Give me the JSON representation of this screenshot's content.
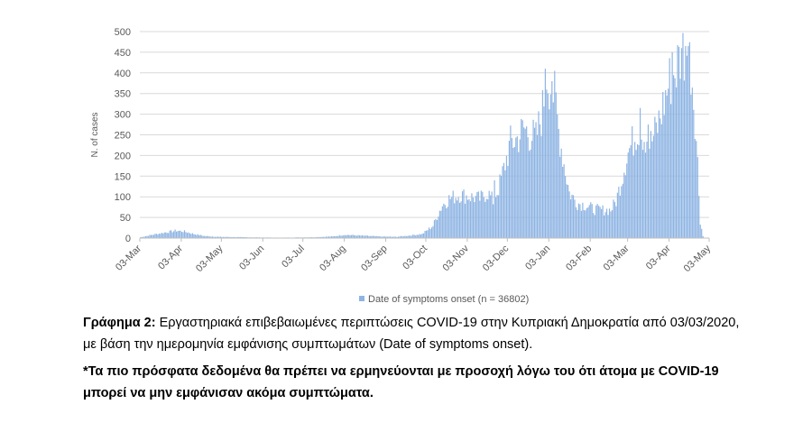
{
  "chart_data": {
    "type": "bar",
    "title": "",
    "ylabel": "N. of cases",
    "xlabel": "",
    "ylim": [
      0,
      500
    ],
    "yticks": [
      0,
      50,
      100,
      150,
      200,
      250,
      300,
      350,
      400,
      450,
      500
    ],
    "x_start": "2020-03-03",
    "x_end": "2021-05-03",
    "xtick_labels": [
      "03-Mar",
      "03-Apr",
      "03-May",
      "03-Jun",
      "03-Jul",
      "03-Aug",
      "03-Sep",
      "03-Oct",
      "03-Nov",
      "03-Dec",
      "03-Jan",
      "03-Feb",
      "03-Mar",
      "03-Apr",
      "03-May"
    ],
    "xtick_dates": [
      "2020-03-03",
      "2020-04-03",
      "2020-05-03",
      "2020-06-03",
      "2020-07-03",
      "2020-08-03",
      "2020-09-03",
      "2020-10-03",
      "2020-11-03",
      "2020-12-03",
      "2021-01-03",
      "2021-02-03",
      "2021-03-03",
      "2021-04-03",
      "2021-05-03"
    ],
    "grid": true,
    "legend_position": "bottom",
    "bar_color": "#8eb4e3",
    "series": [
      {
        "name": "Date of symptoms onset (n = 36802)",
        "anchors": [
          [
            "2020-03-03",
            2
          ],
          [
            "2020-03-12",
            8
          ],
          [
            "2020-03-22",
            14
          ],
          [
            "2020-03-30",
            18
          ],
          [
            "2020-04-05",
            16
          ],
          [
            "2020-04-12",
            10
          ],
          [
            "2020-04-20",
            5
          ],
          [
            "2020-05-01",
            3
          ],
          [
            "2020-05-20",
            2
          ],
          [
            "2020-06-15",
            1
          ],
          [
            "2020-07-10",
            2
          ],
          [
            "2020-07-25",
            4
          ],
          [
            "2020-08-03",
            8
          ],
          [
            "2020-08-15",
            6
          ],
          [
            "2020-08-28",
            4
          ],
          [
            "2020-09-10",
            3
          ],
          [
            "2020-09-20",
            6
          ],
          [
            "2020-09-30",
            10
          ],
          [
            "2020-10-08",
            30
          ],
          [
            "2020-10-12",
            60
          ],
          [
            "2020-10-15",
            80
          ],
          [
            "2020-10-20",
            95
          ],
          [
            "2020-10-28",
            105
          ],
          [
            "2020-11-05",
            100
          ],
          [
            "2020-11-12",
            95
          ],
          [
            "2020-11-18",
            110
          ],
          [
            "2020-11-22",
            90
          ],
          [
            "2020-11-26",
            120
          ],
          [
            "2020-12-01",
            180
          ],
          [
            "2020-12-05",
            230
          ],
          [
            "2020-12-10",
            240
          ],
          [
            "2020-12-15",
            265
          ],
          [
            "2020-12-20",
            250
          ],
          [
            "2020-12-24",
            240
          ],
          [
            "2020-12-29",
            310
          ],
          [
            "2021-01-01",
            400
          ],
          [
            "2021-01-04",
            370
          ],
          [
            "2021-01-07",
            340
          ],
          [
            "2021-01-10",
            260
          ],
          [
            "2021-01-14",
            180
          ],
          [
            "2021-01-18",
            110
          ],
          [
            "2021-01-24",
            85
          ],
          [
            "2021-01-30",
            80
          ],
          [
            "2021-02-05",
            70
          ],
          [
            "2021-02-12",
            68
          ],
          [
            "2021-02-18",
            68
          ],
          [
            "2021-02-22",
            90
          ],
          [
            "2021-02-26",
            140
          ],
          [
            "2021-03-02",
            200
          ],
          [
            "2021-03-06",
            230
          ],
          [
            "2021-03-10",
            265
          ],
          [
            "2021-03-15",
            250
          ],
          [
            "2021-03-20",
            230
          ],
          [
            "2021-03-25",
            270
          ],
          [
            "2021-03-30",
            330
          ],
          [
            "2021-04-03",
            380
          ],
          [
            "2021-04-07",
            400
          ],
          [
            "2021-04-10",
            430
          ],
          [
            "2021-04-13",
            455
          ],
          [
            "2021-04-16",
            450
          ],
          [
            "2021-04-19",
            420
          ],
          [
            "2021-04-22",
            300
          ],
          [
            "2021-04-24",
            180
          ],
          [
            "2021-04-26",
            40
          ],
          [
            "2021-04-28",
            5
          ],
          [
            "2021-04-29",
            0
          ]
        ],
        "spikes": [
          [
            "2020-12-31",
            410
          ],
          [
            "2021-01-05",
            380
          ],
          [
            "2021-03-12",
            315
          ],
          [
            "2021-04-05",
            450
          ],
          [
            "2021-04-12",
            460
          ],
          [
            "2021-04-15",
            465
          ],
          [
            "2021-04-17",
            465
          ],
          [
            "2020-11-23",
            140
          ],
          [
            "2021-03-18",
            275
          ]
        ]
      }
    ]
  },
  "caption": {
    "label": "Γράφημα 2:",
    "text": " Εργαστηριακά επιβεβαιωμένες περιπτώσεις COVID-19 στην Κυπριακή Δημοκρατία από 03/03/2020, με βάση την ημερομηνία εμφάνισης συμπτωμάτων (Date of symptoms onset).",
    "note": "*Τα πιο πρόσφατα δεδομένα θα πρέπει να ερμηνεύονται με προσοχή λόγω του ότι άτομα με COVID-19 μπορεί να μην εμφάνισαν ακόμα συμπτώματα."
  }
}
